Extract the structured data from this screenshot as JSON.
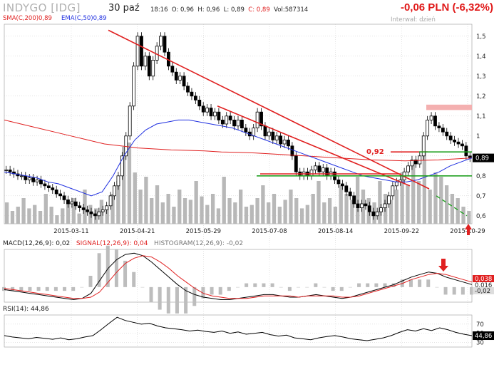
{
  "header": {
    "ticker": "INDYGO [IDG]",
    "date": "30 paź",
    "time": "18:16",
    "open": "O: 0,96",
    "high": "H: 0,96",
    "low": "L: 0,89",
    "close": "C: 0,89",
    "volume": "Vol:587314",
    "change": "-0,06 PLN (-6,32%)",
    "interval": "Interwał: dzień"
  },
  "colors": {
    "candle": "#000000",
    "sma": "#e02020",
    "ema": "#2030e0",
    "volume": "#b8b8b8",
    "trend": "#e02020",
    "support": "#20a020",
    "resist_zone": "#f4b0b0",
    "grid": "#c8c8c8"
  },
  "chart_data": [
    {
      "type": "candlestick",
      "title": "",
      "legend": [
        {
          "name": "SMA(C,200)0,89",
          "color": "#e02020"
        },
        {
          "name": "EMA(C,50)0,89",
          "color": "#2030e0"
        }
      ],
      "x_ticks": [
        "2015-03-11",
        "2015-04-21",
        "2015-05-29",
        "2015-07-08",
        "2015-08-14",
        "2015-09-22",
        "2015-10-29"
      ],
      "y_ticks": [
        0.6,
        0.7,
        0.8,
        0.9,
        1.0,
        1.1,
        1.2,
        1.3,
        1.4,
        1.5
      ],
      "y_tick_labels": [
        "0,6",
        "0,7",
        "0,8",
        "0,9",
        "1",
        "1,1",
        "1,2",
        "1,3",
        "1,4",
        "1,5"
      ],
      "ylim": [
        0.56,
        1.56
      ],
      "last_price_label": "0,89",
      "annotation_092": "0,92",
      "close_series": [
        0.83,
        0.82,
        0.81,
        0.8,
        0.8,
        0.78,
        0.79,
        0.77,
        0.78,
        0.76,
        0.75,
        0.74,
        0.73,
        0.71,
        0.7,
        0.68,
        0.66,
        0.67,
        0.65,
        0.64,
        0.63,
        0.62,
        0.61,
        0.6,
        0.62,
        0.63,
        0.65,
        0.7,
        0.75,
        0.8,
        0.9,
        1.0,
        1.15,
        1.35,
        1.5,
        1.35,
        1.4,
        1.3,
        1.38,
        1.45,
        1.5,
        1.42,
        1.35,
        1.32,
        1.28,
        1.3,
        1.25,
        1.22,
        1.2,
        1.18,
        1.15,
        1.12,
        1.14,
        1.1,
        1.12,
        1.08,
        1.06,
        1.1,
        1.08,
        1.05,
        1.08,
        1.04,
        1.02,
        1.0,
        1.04,
        1.12,
        1.05,
        1.0,
        1.02,
        0.98,
        1.0,
        0.96,
        0.98,
        0.95,
        0.9,
        0.82,
        0.8,
        0.82,
        0.8,
        0.83,
        0.85,
        0.82,
        0.84,
        0.8,
        0.82,
        0.78,
        0.76,
        0.75,
        0.72,
        0.7,
        0.66,
        0.64,
        0.66,
        0.65,
        0.62,
        0.6,
        0.62,
        0.64,
        0.66,
        0.7,
        0.75,
        0.77,
        0.78,
        0.82,
        0.85,
        0.88,
        0.86,
        0.9,
        1.0,
        1.08,
        1.1,
        1.05,
        1.04,
        1.02,
        1.0,
        0.98,
        0.97,
        0.96,
        0.95,
        0.9,
        0.89
      ],
      "sma200_series": [
        1.08,
        1.06,
        1.04,
        1.02,
        1.0,
        0.98,
        0.96,
        0.95,
        0.94,
        0.935,
        0.93,
        0.928,
        0.925,
        0.92,
        0.918,
        0.915,
        0.91,
        0.905,
        0.9,
        0.895,
        0.89,
        0.885,
        0.88,
        0.878,
        0.875,
        0.878,
        0.88,
        0.885,
        0.89
      ],
      "ema50_series": [
        0.82,
        0.81,
        0.8,
        0.79,
        0.77,
        0.76,
        0.74,
        0.72,
        0.7,
        0.72,
        0.8,
        0.9,
        0.98,
        1.03,
        1.06,
        1.07,
        1.08,
        1.08,
        1.07,
        1.06,
        1.05,
        1.04,
        1.02,
        1.0,
        0.98,
        0.96,
        0.94,
        0.92,
        0.9,
        0.88,
        0.86,
        0.84,
        0.82,
        0.8,
        0.79,
        0.78,
        0.77,
        0.77,
        0.78,
        0.8,
        0.82,
        0.85,
        0.87,
        0.89
      ],
      "volume_series": [
        0.25,
        0.15,
        0.2,
        0.3,
        0.18,
        0.22,
        0.15,
        0.35,
        0.2,
        0.1,
        0.18,
        0.25,
        0.3,
        0.12,
        0.4,
        0.22,
        0.18,
        0.28,
        0.2,
        0.35,
        0.5,
        0.9,
        0.95,
        0.6,
        0.4,
        0.55,
        0.3,
        0.45,
        0.25,
        0.35,
        0.2,
        0.4,
        0.3,
        0.28,
        0.5,
        0.32,
        0.22,
        0.35,
        0.18,
        0.55,
        0.3,
        0.25,
        0.4,
        0.2,
        0.22,
        0.3,
        0.45,
        0.25,
        0.35,
        0.2,
        0.28,
        0.4,
        0.3,
        0.18,
        0.22,
        0.35,
        0.5,
        0.25,
        0.3,
        0.2,
        0.45,
        0.35,
        0.28,
        0.55,
        0.4,
        0.3,
        0.25,
        0.5,
        0.35,
        0.28,
        0.4,
        0.6,
        0.45,
        0.7,
        0.5,
        0.85,
        0.4,
        0.6,
        0.55,
        0.45,
        0.35,
        0.3,
        0.2,
        0.15
      ]
    },
    {
      "type": "line",
      "title": "",
      "legend": [
        {
          "name": "MACD(12,26,9): 0,02",
          "color": "#000000"
        },
        {
          "name": "SIGNAL(12,26,9): 0,04",
          "color": "#e02020"
        },
        {
          "name": "HISTOGRAM(12,26,9): -0,02",
          "color": "#888888"
        }
      ],
      "right_labels": [
        "0,038",
        "0,016",
        "-0,02"
      ],
      "macd_series": [
        -0.02,
        -0.03,
        -0.04,
        -0.05,
        -0.06,
        -0.07,
        -0.08,
        -0.09,
        -0.1,
        -0.09,
        -0.05,
        0.05,
        0.15,
        0.22,
        0.26,
        0.27,
        0.25,
        0.2,
        0.14,
        0.08,
        0.02,
        -0.03,
        -0.06,
        -0.08,
        -0.09,
        -0.1,
        -0.1,
        -0.09,
        -0.08,
        -0.07,
        -0.06,
        -0.06,
        -0.07,
        -0.08,
        -0.08,
        -0.07,
        -0.06,
        -0.07,
        -0.08,
        -0.09,
        -0.08,
        -0.06,
        -0.04,
        -0.02,
        0.0,
        0.02,
        0.05,
        0.08,
        0.1,
        0.12,
        0.11,
        0.08,
        0.06,
        0.04,
        0.02
      ],
      "signal_series": [
        -0.01,
        -0.02,
        -0.03,
        -0.04,
        -0.05,
        -0.06,
        -0.07,
        -0.08,
        -0.09,
        -0.09,
        -0.08,
        -0.04,
        0.04,
        0.12,
        0.19,
        0.23,
        0.25,
        0.24,
        0.2,
        0.15,
        0.09,
        0.04,
        -0.01,
        -0.05,
        -0.07,
        -0.08,
        -0.09,
        -0.09,
        -0.09,
        -0.08,
        -0.07,
        -0.07,
        -0.07,
        -0.07,
        -0.08,
        -0.07,
        -0.07,
        -0.07,
        -0.07,
        -0.08,
        -0.08,
        -0.07,
        -0.05,
        -0.03,
        -0.01,
        0.01,
        0.03,
        0.06,
        0.08,
        0.1,
        0.11,
        0.1,
        0.08,
        0.06,
        0.04
      ]
    },
    {
      "type": "line",
      "title": "",
      "legend": [
        {
          "name": "RSI(14): 44,86",
          "color": "#000000"
        }
      ],
      "y_ticks": [
        30,
        50,
        70
      ],
      "y_tick_labels": [
        "30",
        "50",
        "70"
      ],
      "last_label": "44,86",
      "rsi_series": [
        45,
        42,
        40,
        38,
        41,
        39,
        37,
        40,
        36,
        38,
        42,
        45,
        58,
        72,
        85,
        78,
        74,
        70,
        72,
        66,
        62,
        60,
        58,
        55,
        57,
        54,
        52,
        55,
        50,
        53,
        48,
        50,
        52,
        47,
        44,
        46,
        40,
        38,
        36,
        40,
        43,
        45,
        42,
        38,
        36,
        34,
        37,
        40,
        45,
        52,
        58,
        55,
        60,
        56,
        62,
        58,
        52,
        48,
        44.86
      ]
    }
  ]
}
